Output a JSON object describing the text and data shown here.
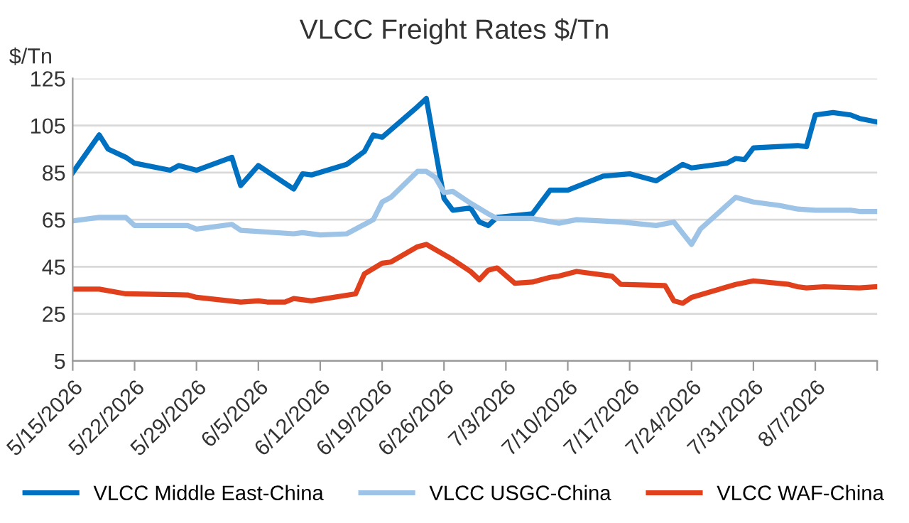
{
  "chart_data": {
    "type": "line",
    "title": "VLCC Freight Rates $/Tn",
    "ylabel": "$/Tn",
    "ylim": [
      5,
      125
    ],
    "yticks": [
      5,
      25,
      45,
      65,
      85,
      105,
      125
    ],
    "xlim": [
      "2026-05-15",
      "2026-08-14"
    ],
    "xticks": [
      {
        "value": "2026-05-15",
        "label": "5/15/2026"
      },
      {
        "value": "2026-05-22",
        "label": "5/22/2026"
      },
      {
        "value": "2026-05-29",
        "label": "5/29/2026"
      },
      {
        "value": "2026-06-05",
        "label": "6/5/2026"
      },
      {
        "value": "2026-06-12",
        "label": "6/12/2026"
      },
      {
        "value": "2026-06-19",
        "label": "6/19/2026"
      },
      {
        "value": "2026-06-26",
        "label": "6/26/2026"
      },
      {
        "value": "2026-07-03",
        "label": "7/3/2026"
      },
      {
        "value": "2026-07-10",
        "label": "7/10/2026"
      },
      {
        "value": "2026-07-17",
        "label": "7/17/2026"
      },
      {
        "value": "2026-07-24",
        "label": "7/24/2026"
      },
      {
        "value": "2026-07-31",
        "label": "7/31/2026"
      },
      {
        "value": "2026-08-07",
        "label": "8/7/2026"
      },
      {
        "value": "2026-08-14",
        "label": null
      }
    ],
    "grid": "y",
    "legend": "bottom",
    "marker": "none",
    "line_style": "solid",
    "series": [
      {
        "name": "VLCC Middle East-China",
        "color": "#0070c0",
        "x": [
          "2026-05-15",
          "2026-05-18",
          "2026-05-19",
          "2026-05-21",
          "2026-05-22",
          "2026-05-26",
          "2026-05-27",
          "2026-05-29",
          "2026-06-02",
          "2026-06-03",
          "2026-06-05",
          "2026-06-09",
          "2026-06-10",
          "2026-06-11",
          "2026-06-15",
          "2026-06-17",
          "2026-06-18",
          "2026-06-19",
          "2026-06-23",
          "2026-06-24",
          "2026-06-26",
          "2026-06-27",
          "2026-06-29",
          "2026-06-30",
          "2026-07-01",
          "2026-07-02",
          "2026-07-06",
          "2026-07-08",
          "2026-07-10",
          "2026-07-14",
          "2026-07-17",
          "2026-07-20",
          "2026-07-23",
          "2026-07-24",
          "2026-07-28",
          "2026-07-29",
          "2026-07-30",
          "2026-07-31",
          "2026-08-05",
          "2026-08-06",
          "2026-08-07",
          "2026-08-09",
          "2026-08-11",
          "2026-08-12",
          "2026-08-14"
        ],
        "values": [
          85,
          101,
          95,
          91.5,
          89,
          86,
          88,
          86,
          91.5,
          79.5,
          88,
          78,
          84.5,
          84,
          88.5,
          94,
          101,
          100,
          113,
          116.5,
          74,
          69,
          70,
          64,
          62.5,
          66,
          67.5,
          77.5,
          77.5,
          83.5,
          84.5,
          81.5,
          88.5,
          87,
          89,
          91,
          90.5,
          95.5,
          96.5,
          96,
          109.5,
          110.5,
          109.5,
          108,
          106.5
        ]
      },
      {
        "name": "VLCC USGC-China",
        "color": "#9dc3e6",
        "x": [
          "2026-05-15",
          "2026-05-18",
          "2026-05-21",
          "2026-05-22",
          "2026-05-28",
          "2026-05-29",
          "2026-06-02",
          "2026-06-03",
          "2026-06-09",
          "2026-06-10",
          "2026-06-12",
          "2026-06-15",
          "2026-06-17",
          "2026-06-18",
          "2026-06-19",
          "2026-06-20",
          "2026-06-23",
          "2026-06-24",
          "2026-06-25",
          "2026-06-26",
          "2026-06-27",
          "2026-06-29",
          "2026-07-01",
          "2026-07-02",
          "2026-07-06",
          "2026-07-09",
          "2026-07-11",
          "2026-07-16",
          "2026-07-20",
          "2026-07-22",
          "2026-07-24",
          "2026-07-25",
          "2026-07-29",
          "2026-07-31",
          "2026-08-03",
          "2026-08-05",
          "2026-08-07",
          "2026-08-11",
          "2026-08-12",
          "2026-08-14"
        ],
        "values": [
          64.5,
          66,
          66,
          62.5,
          62.5,
          61,
          63,
          60.5,
          59,
          59.5,
          58.5,
          59,
          63,
          65,
          72.5,
          74.5,
          85.5,
          85.5,
          83,
          76.5,
          77,
          72,
          67.5,
          65.5,
          65.5,
          63.5,
          65,
          64,
          62.5,
          64,
          54.5,
          61,
          74.5,
          72.5,
          71,
          69.5,
          69,
          69,
          68.5,
          68.5
        ]
      },
      {
        "name": "VLCC WAF-China",
        "color": "#e0401c",
        "x": [
          "2026-05-15",
          "2026-05-18",
          "2026-05-21",
          "2026-05-28",
          "2026-05-29",
          "2026-06-03",
          "2026-06-05",
          "2026-06-06",
          "2026-06-08",
          "2026-06-09",
          "2026-06-11",
          "2026-06-16",
          "2026-06-17",
          "2026-06-19",
          "2026-06-20",
          "2026-06-23",
          "2026-06-24",
          "2026-06-27",
          "2026-06-29",
          "2026-06-30",
          "2026-07-01",
          "2026-07-02",
          "2026-07-04",
          "2026-07-06",
          "2026-07-08",
          "2026-07-09",
          "2026-07-11",
          "2026-07-15",
          "2026-07-16",
          "2026-07-21",
          "2026-07-22",
          "2026-07-23",
          "2026-07-24",
          "2026-07-29",
          "2026-07-31",
          "2026-08-04",
          "2026-08-05",
          "2026-08-06",
          "2026-08-08",
          "2026-08-12",
          "2026-08-14"
        ],
        "values": [
          35.5,
          35.5,
          33.5,
          33,
          32,
          30,
          30.5,
          30,
          30,
          31.5,
          30.5,
          33.5,
          42,
          46.5,
          47,
          53.5,
          54.5,
          48,
          43,
          39.5,
          43.5,
          44.5,
          38,
          38.5,
          40.5,
          41,
          43,
          41,
          37.5,
          37,
          30.5,
          29.5,
          32,
          37.5,
          39,
          37.5,
          36.5,
          36,
          36.5,
          36,
          36.5
        ]
      }
    ]
  }
}
